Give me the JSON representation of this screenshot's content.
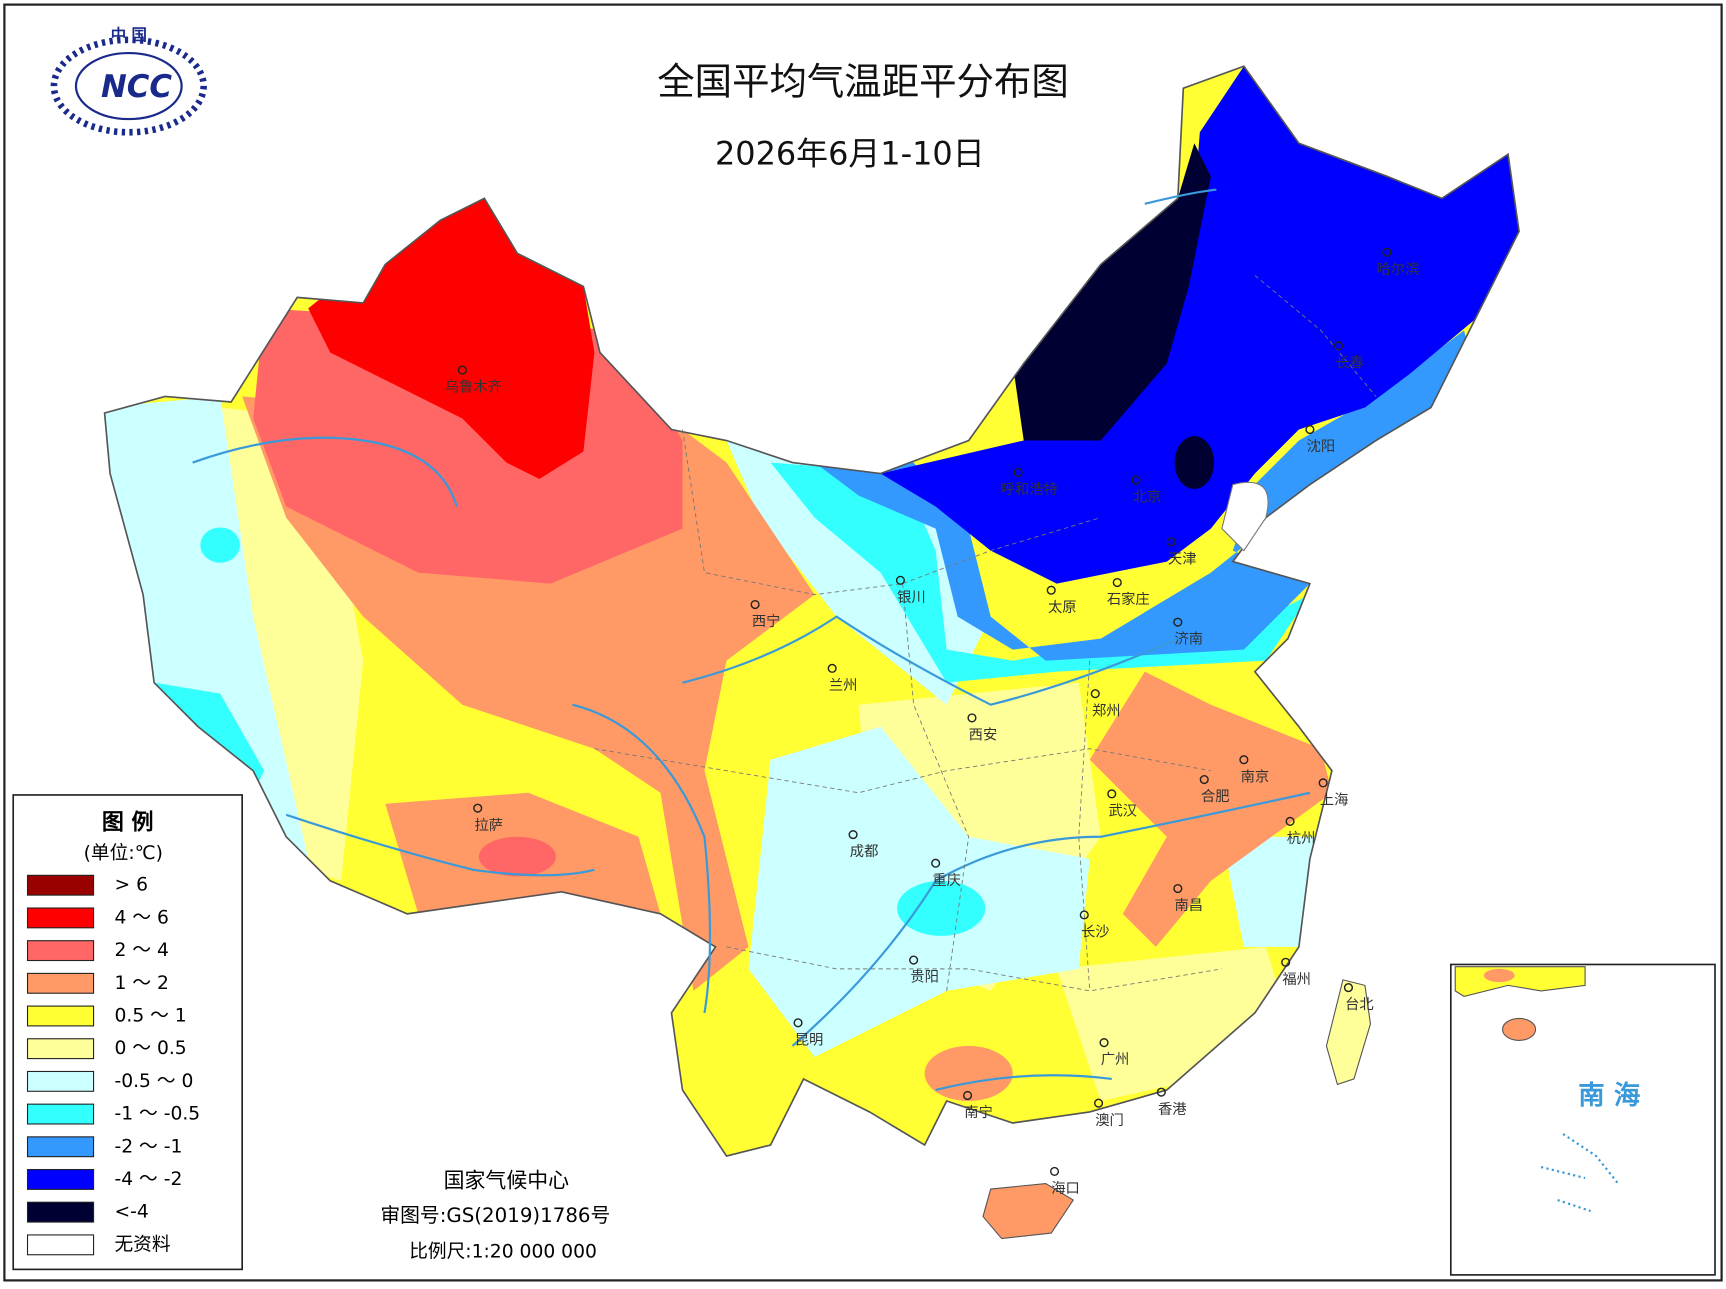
{
  "header": {
    "title": "全国平均气温距平分布图",
    "subtitle": "2026年6月1-10日",
    "logo_top": "中 国",
    "logo_mark": "NCC"
  },
  "legend": {
    "title": "图 例",
    "unit": "(单位:℃)",
    "items": [
      {
        "label": "> 6",
        "color": "#990000"
      },
      {
        "label": "4 ～ 6",
        "color": "#ff0000"
      },
      {
        "label": "2 ～ 4",
        "color": "#ff6666"
      },
      {
        "label": "1 ～ 2",
        "color": "#ff9966"
      },
      {
        "label": "0.5 ～ 1",
        "color": "#ffff33"
      },
      {
        "label": "0 ～ 0.5",
        "color": "#ffff99"
      },
      {
        "label": "-0.5 ～ 0",
        "color": "#ccffff"
      },
      {
        "label": "-1 ～ -0.5",
        "color": "#33ffff"
      },
      {
        "label": "-2 ～ -1",
        "color": "#3399ff"
      },
      {
        "label": "-4 ～ -2",
        "color": "#0000ff"
      },
      {
        "label": "<-4",
        "color": "#000033"
      },
      {
        "label": "无资料",
        "color": "#ffffff"
      }
    ]
  },
  "cities": [
    "乌鲁木齐",
    "呼和浩特",
    "北京",
    "哈尔滨",
    "长春",
    "沈阳",
    "天津",
    "石家庄",
    "太原",
    "银川",
    "西宁",
    "兰州",
    "济南",
    "郑州",
    "西安",
    "南京",
    "合肥",
    "上海",
    "武汉",
    "杭州",
    "成都",
    "重庆",
    "拉萨",
    "南昌",
    "长沙",
    "贵阳",
    "福州",
    "台北",
    "昆明",
    "广州",
    "南宁",
    "香港",
    "澳门",
    "海口"
  ],
  "inset": {
    "label": "南 海"
  },
  "footer": {
    "agency": "国家气候中心",
    "approval": "审图号:GS(2019)1786号",
    "scale": "比例尺:1:20 000 000"
  }
}
